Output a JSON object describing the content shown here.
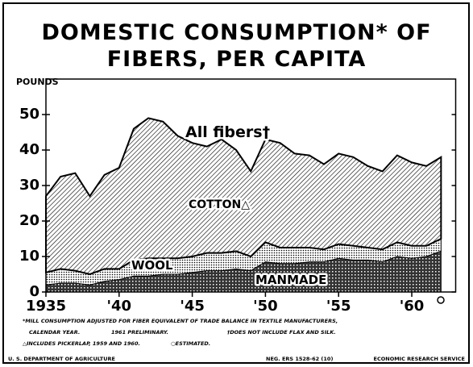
{
  "chart_data": {
    "type": "stacked_area",
    "title": "DOMESTIC CONSUMPTION* OF FIBERS, PER CAPITA",
    "y_label": "POUNDS",
    "annotations": [
      "All fibers†",
      "COTTON△",
      "WOOL",
      "MANMADE"
    ],
    "x": [
      1935,
      1936,
      1937,
      1938,
      1939,
      1940,
      1941,
      1942,
      1943,
      1944,
      1945,
      1946,
      1947,
      1948,
      1949,
      1950,
      1951,
      1952,
      1953,
      1954,
      1955,
      1956,
      1957,
      1958,
      1959,
      1960,
      1961,
      1962
    ],
    "series": [
      {
        "name": "MANMADE",
        "color": "#000000",
        "values": [
          2,
          2.5,
          2.5,
          2,
          3,
          3.5,
          4.5,
          4.5,
          5,
          5,
          5.5,
          6,
          6,
          6.5,
          6,
          8.5,
          8,
          8,
          8.5,
          8.5,
          9.5,
          9,
          9,
          8.5,
          10,
          9.5,
          10,
          11.5
        ]
      },
      {
        "name": "WOOL",
        "color": "#000000",
        "values": [
          3.5,
          4,
          3.5,
          3,
          3.5,
          3,
          4.5,
          5,
          4.5,
          4.5,
          4.5,
          5,
          5,
          5,
          4,
          5.5,
          4.5,
          4.5,
          4,
          3.5,
          4,
          4,
          3.5,
          3.5,
          4,
          3.5,
          3,
          3.5
        ]
      },
      {
        "name": "COTTON",
        "color": "#000000",
        "values": [
          21.5,
          26,
          27.5,
          22,
          26.5,
          28.5,
          37,
          39.5,
          38.5,
          34.5,
          32,
          30,
          32,
          28.5,
          24,
          29,
          29.5,
          26.5,
          26,
          24,
          25.5,
          25,
          23,
          22,
          24.5,
          23.5,
          22.5,
          23
        ]
      }
    ],
    "xlim": [
      1935,
      1963
    ],
    "xticks": [
      1935,
      {
        "value": 1940,
        "label": "'40"
      },
      {
        "value": 1945,
        "label": "'45"
      },
      {
        "value": 1950,
        "label": "'50"
      },
      {
        "value": 1955,
        "label": "'55"
      },
      {
        "value": 1960,
        "label": "'60"
      }
    ],
    "ylim": [
      0,
      60
    ],
    "yticks": [
      0,
      10,
      20,
      30,
      40,
      50
    ],
    "notes": [
      "*MILL CONSUMPTION ADJUSTED FOR FIBER EQUIVALENT OF TRADE BALANCE IN TEXTILE MANUFACTURERS,",
      "CALENDAR YEAR.",
      "1961 PRELIMINARY.",
      "†DOES NOT INCLUDE FLAX AND SILK.",
      "△INCLUDES PICKERLAP, 1959 AND 1960.",
      "○ESTIMATED."
    ],
    "footer": [
      "U. S. DEPARTMENT OF AGRICULTURE",
      "NEG. ERS 1528-62 (10)",
      "ECONOMIC RESEARCH SERVICE"
    ]
  }
}
